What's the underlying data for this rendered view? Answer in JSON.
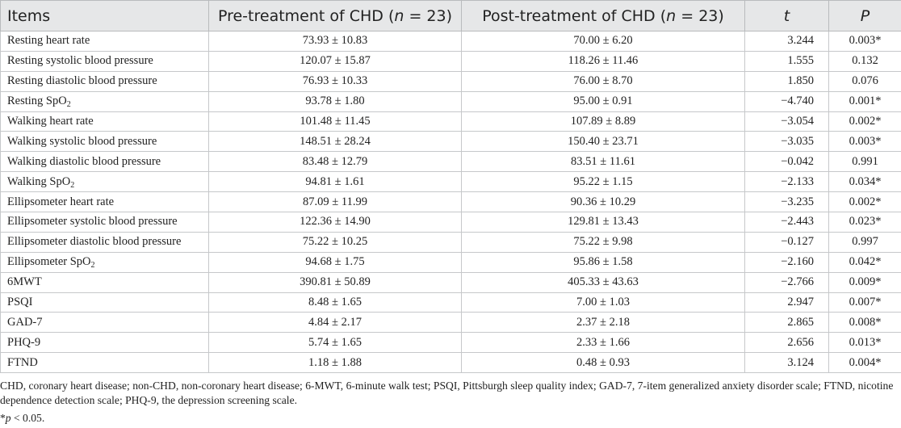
{
  "header": {
    "items": "Items",
    "pre_prefix": "Pre-treatment of CHD (",
    "n_symbol": "n",
    "n_value": " = 23)",
    "post_prefix": "Post-treatment of CHD (",
    "t": "t",
    "p": "P"
  },
  "rows": [
    {
      "item": "Resting heart rate",
      "pre": "73.93 ± 10.83",
      "post": "70.00 ± 6.20",
      "t": "3.244",
      "p": "0.003*"
    },
    {
      "item": "Resting systolic blood pressure",
      "pre": "120.07 ± 15.87",
      "post": "118.26 ± 11.46",
      "t": "1.555",
      "p": "0.132"
    },
    {
      "item": "Resting diastolic blood pressure",
      "pre": "76.93 ± 10.33",
      "post": "76.00 ± 8.70",
      "t": "1.850",
      "p": "0.076"
    },
    {
      "item": "Resting SpO",
      "sub": "2",
      "pre": "93.78 ± 1.80",
      "post": "95.00 ± 0.91",
      "t": "−4.740",
      "p": "0.001*"
    },
    {
      "item": "Walking heart rate",
      "pre": "101.48 ± 11.45",
      "post": "107.89 ± 8.89",
      "t": "−3.054",
      "p": "0.002*"
    },
    {
      "item": "Walking systolic blood pressure",
      "pre": "148.51 ± 28.24",
      "post": "150.40 ± 23.71",
      "t": "−3.035",
      "p": "0.003*"
    },
    {
      "item": "Walking diastolic blood pressure",
      "pre": "83.48 ± 12.79",
      "post": "83.51 ± 11.61",
      "t": "−0.042",
      "p": "0.991"
    },
    {
      "item": "Walking SpO",
      "sub": "2",
      "pre": "94.81 ± 1.61",
      "post": "95.22 ± 1.15",
      "t": "−2.133",
      "p": "0.034*"
    },
    {
      "item": "Ellipsometer heart rate",
      "pre": "87.09 ± 11.99",
      "post": "90.36 ± 10.29",
      "t": "−3.235",
      "p": "0.002*"
    },
    {
      "item": "Ellipsometer systolic blood pressure",
      "pre": "122.36 ± 14.90",
      "post": "129.81 ± 13.43",
      "t": "−2.443",
      "p": "0.023*"
    },
    {
      "item": "Ellipsometer diastolic blood pressure",
      "pre": "75.22 ± 10.25",
      "post": "75.22 ± 9.98",
      "t": "−0.127",
      "p": "0.997"
    },
    {
      "item": "Ellipsometer SpO",
      "sub": "2",
      "pre": "94.68 ± 1.75",
      "post": "95.86 ± 1.58",
      "t": "−2.160",
      "p": "0.042*"
    },
    {
      "item": "6MWT",
      "pre": "390.81 ± 50.89",
      "post": "405.33 ± 43.63",
      "t": "−2.766",
      "p": "0.009*"
    },
    {
      "item": "PSQI",
      "pre": "8.48 ± 1.65",
      "post": "7.00 ± 1.03",
      "t": "2.947",
      "p": "0.007*"
    },
    {
      "item": "GAD-7",
      "pre": "4.84 ± 2.17",
      "post": "2.37 ± 2.18",
      "t": "2.865",
      "p": "0.008*"
    },
    {
      "item": "PHQ-9",
      "pre": "5.74 ± 1.65",
      "post": "2.33 ± 1.66",
      "t": "2.656",
      "p": "0.013*"
    },
    {
      "item": "FTND",
      "pre": "1.18 ± 1.88",
      "post": "0.48 ± 0.93",
      "t": "3.124",
      "p": "0.004*"
    }
  ],
  "footnote": "CHD, coronary heart disease; non-CHD, non-coronary heart disease; 6-MWT, 6-minute walk test; PSQI, Pittsburgh sleep quality index; GAD-7, 7-item generalized anxiety disorder scale; FTND, nicotine dependence detection scale; PHQ-9, the depression screening scale.",
  "significance": {
    "mark": "*",
    "symbol": "p",
    "text": " < 0.05."
  }
}
